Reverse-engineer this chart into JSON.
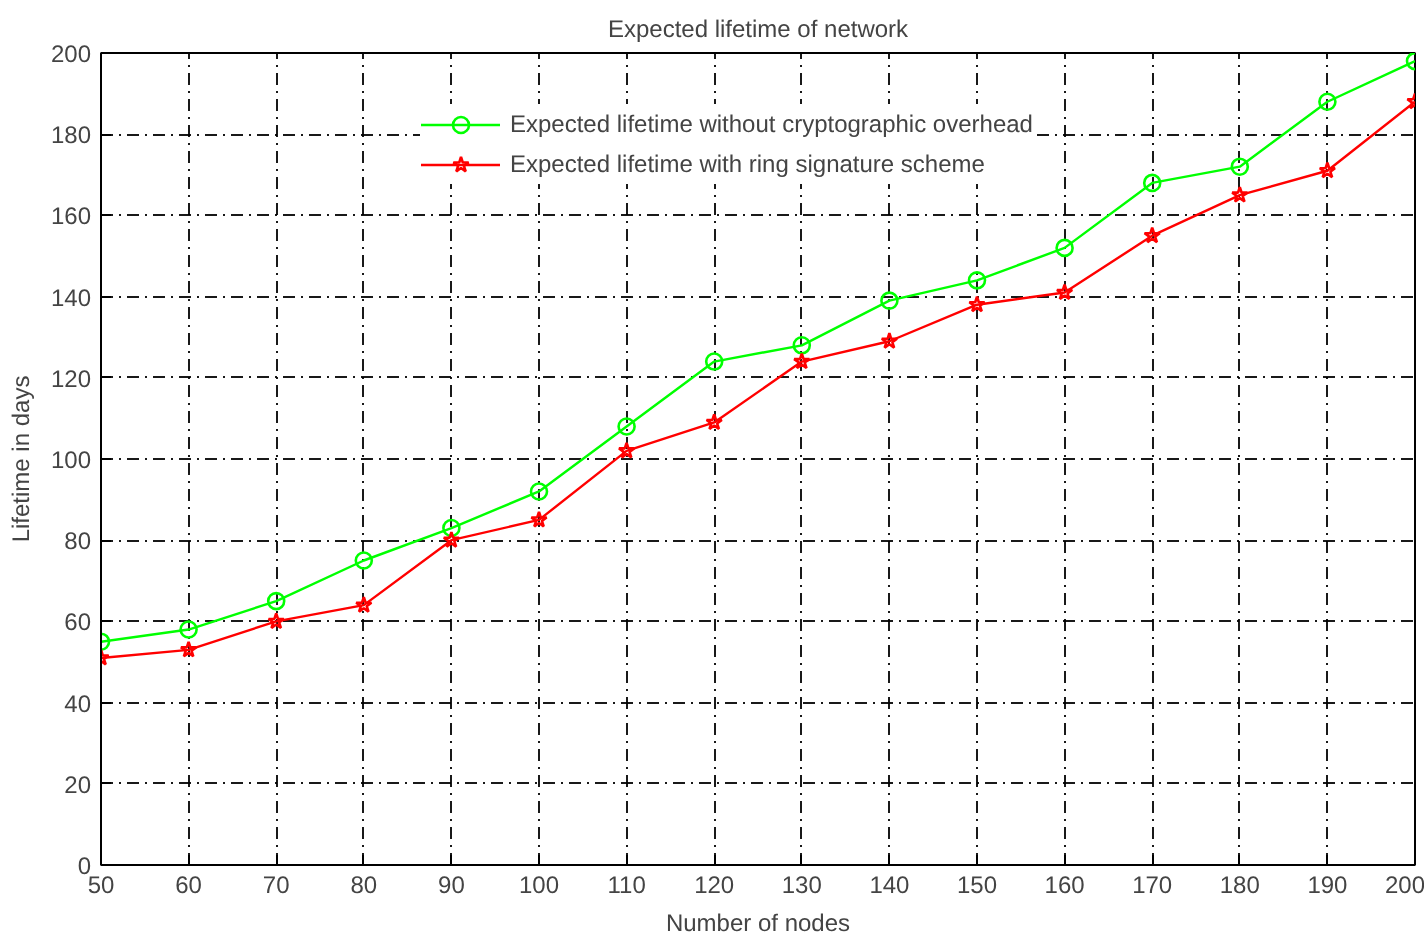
{
  "chart_data": {
    "type": "line",
    "title": "Expected lifetime of network",
    "xlabel": "Number of nodes",
    "ylabel": "Lifetime in days",
    "x": [
      50,
      60,
      70,
      80,
      90,
      100,
      110,
      120,
      130,
      140,
      150,
      160,
      170,
      180,
      190,
      200
    ],
    "series": [
      {
        "name": "Expected lifetime without cryptographic overhead",
        "color": "#00ff00",
        "marker": "circle",
        "values": [
          55,
          58,
          65,
          75,
          83,
          92,
          108,
          124,
          128,
          139,
          144,
          152,
          168,
          172,
          188,
          198
        ]
      },
      {
        "name": "Expected lifetime with ring signature scheme",
        "color": "#ff0000",
        "marker": "star",
        "values": [
          51,
          53,
          60,
          64,
          80,
          85,
          102,
          109,
          124,
          129,
          138,
          141,
          155,
          165,
          171,
          188
        ]
      }
    ],
    "xlim": [
      50,
      200
    ],
    "xticks": [
      50,
      60,
      70,
      80,
      90,
      100,
      110,
      120,
      130,
      140,
      150,
      160,
      170,
      180,
      190,
      200
    ],
    "ylim": [
      0,
      200
    ],
    "yticks": [
      0,
      20,
      40,
      60,
      80,
      100,
      120,
      140,
      160,
      180,
      200
    ],
    "grid": true,
    "legend": "top right",
    "line_style": "solid"
  }
}
